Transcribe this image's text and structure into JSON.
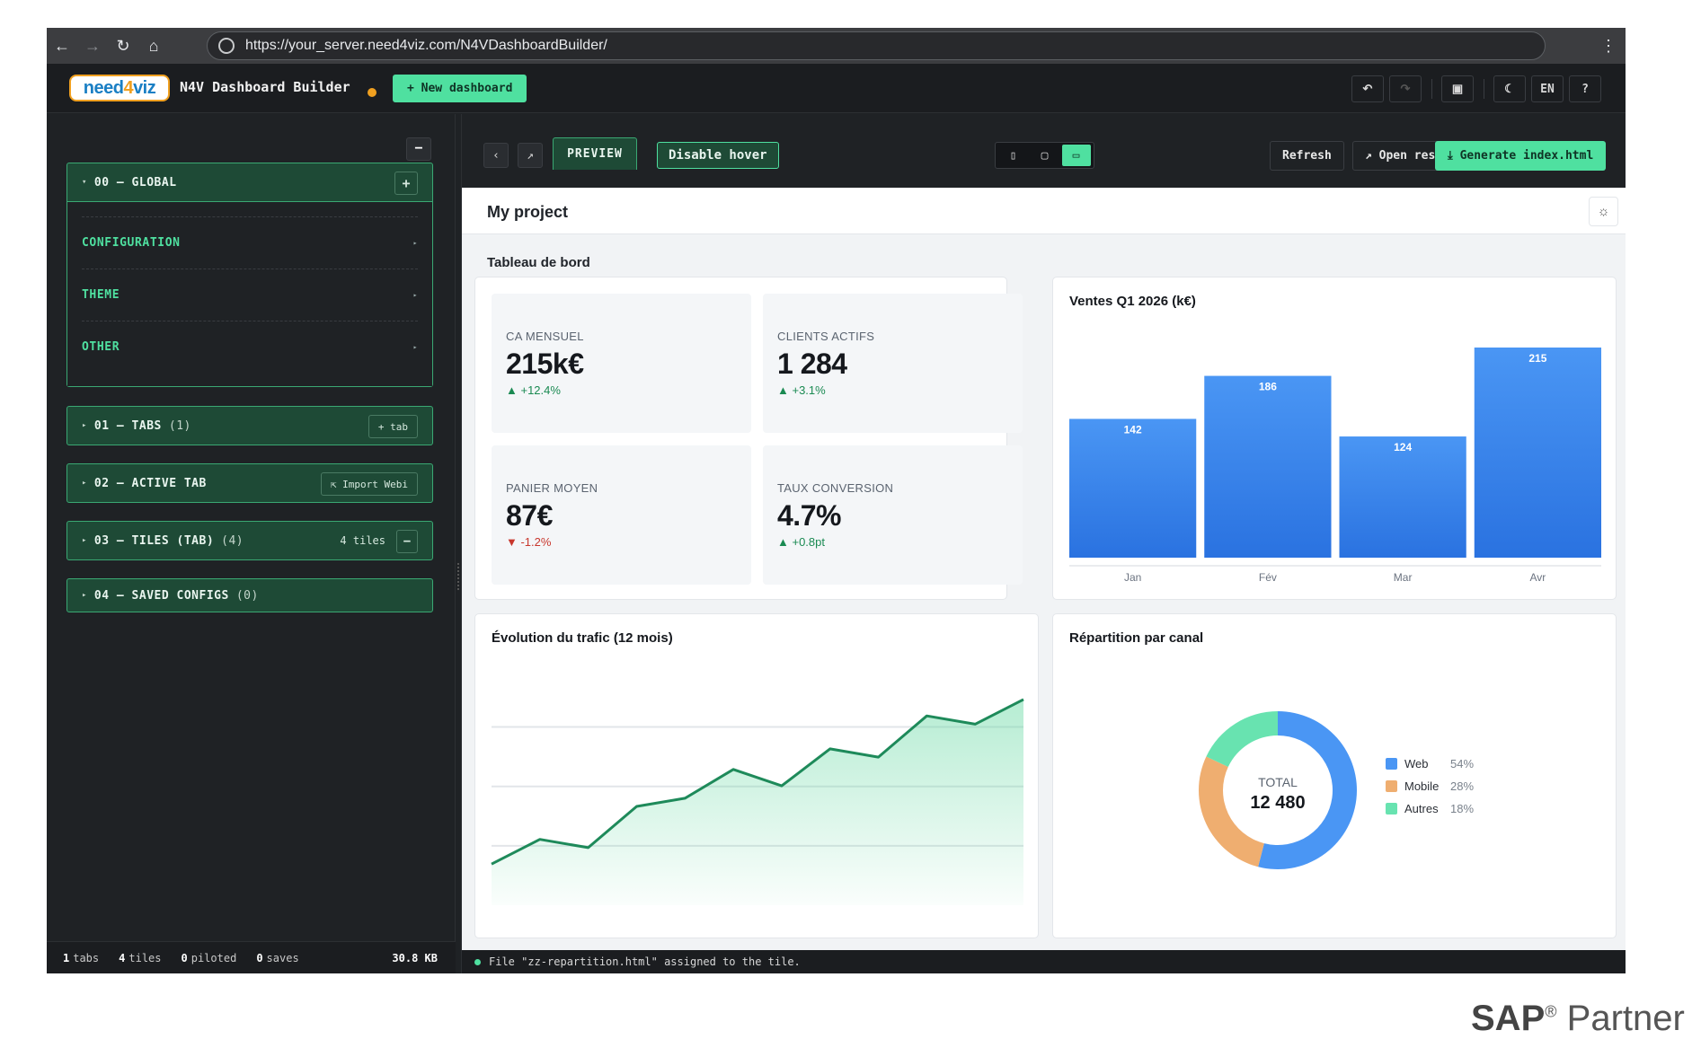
{
  "browser": {
    "url": "https://your_server.need4viz.com/N4VDashboardBuilder/"
  },
  "header": {
    "logo_text_a": "need",
    "logo_text_b": "4",
    "logo_text_c": "viz",
    "title": "N4V Dashboard Builder",
    "new_dashboard": "+ New dashboard",
    "lang": "EN",
    "help": "?"
  },
  "sidebar": {
    "collapse": "−",
    "global": {
      "label": "00 — GLOBAL",
      "add": "+",
      "items": [
        "CONFIGURATION",
        "THEME",
        "OTHER"
      ]
    },
    "tabs": {
      "label": "01 — TABS",
      "count": "(1)",
      "button": "+ tab"
    },
    "active_tab": {
      "label": "02 — ACTIVE TAB",
      "button": "⇱ Import Webi"
    },
    "tiles": {
      "label": "03 — TILES (TAB)",
      "count": "(4)",
      "info": "4 tiles",
      "button": "−"
    },
    "saved": {
      "label": "04 — SAVED CONFIGS",
      "count": "(0)"
    },
    "footer": {
      "tabs_n": "1",
      "tabs_l": "tabs",
      "tiles_n": "4",
      "tiles_l": "tiles",
      "piloted_n": "0",
      "piloted_l": "piloted",
      "saves_n": "0",
      "saves_l": "saves",
      "size": "30.8 KB"
    }
  },
  "toolbar": {
    "preview": "PREVIEW",
    "disable_hover": "Disable hover",
    "refresh": "Refresh",
    "open_result": "↗ Open result",
    "generate": "⤓ Generate index.html"
  },
  "preview": {
    "project": "My project",
    "dashboard_title": "Tableau de bord",
    "kpis": [
      {
        "label": "CA MENSUEL",
        "value": "215k€",
        "delta": "▲ +12.4%",
        "trend": "up"
      },
      {
        "label": "CLIENTS ACTIFS",
        "value": "1 284",
        "delta": "▲ +3.1%",
        "trend": "up"
      },
      {
        "label": "PANIER MOYEN",
        "value": "87€",
        "delta": "▼ -1.2%",
        "trend": "down"
      },
      {
        "label": "TAUX CONVERSION",
        "value": "4.7%",
        "delta": "▲ +0.8pt",
        "trend": "up"
      }
    ]
  },
  "status": {
    "message": "File \"zz-repartition.html\" assigned to the tile."
  },
  "watermark": {
    "brand": "SAP",
    "reg": "®",
    "word": "Partner"
  },
  "colors": {
    "accent": "#4fe0a0",
    "section_bg": "#1e4a36",
    "bar_top": "#4a96f4",
    "bar_bottom": "#2a72e0",
    "line": "#1e8a5a",
    "web": "#4a96f4",
    "mobile": "#efae70",
    "autres": "#68e3b0"
  },
  "chart_data": [
    {
      "type": "bar",
      "title": "Ventes Q1 2026 (k€)",
      "categories": [
        "Jan",
        "Fév",
        "Mar",
        "Avr"
      ],
      "values": [
        142,
        186,
        124,
        215
      ],
      "ylim": [
        0,
        215
      ],
      "grid": false,
      "legend": "none"
    },
    {
      "type": "area",
      "title": "Évolution du trafic (12 mois)",
      "x": [
        1,
        2,
        3,
        4,
        5,
        6,
        7,
        8,
        9,
        10,
        11,
        12
      ],
      "values": [
        20,
        32,
        28,
        48,
        52,
        66,
        58,
        76,
        72,
        92,
        88,
        100
      ],
      "ylim": [
        0,
        110
      ],
      "grid": true,
      "legend": "none"
    },
    {
      "type": "pie",
      "title": "Répartition par canal",
      "center_label": "TOTAL",
      "center_value": "12 480",
      "categories": [
        "Web",
        "Mobile",
        "Autres"
      ],
      "values": [
        54,
        28,
        18
      ],
      "value_labels": [
        "54%",
        "28%",
        "18%"
      ],
      "legend": "right"
    }
  ]
}
